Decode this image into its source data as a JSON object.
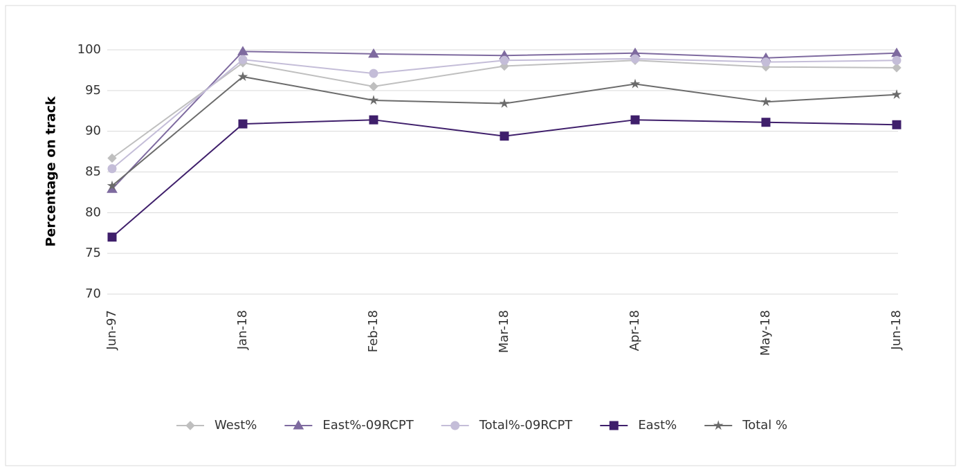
{
  "chart_data": {
    "type": "line",
    "y_label": "Percentage on track",
    "categories": [
      "Jun-97",
      "Jan-18",
      "Feb-18",
      "Mar-18",
      "Apr-18",
      "May-18",
      "Jun-18"
    ],
    "series": [
      {
        "name": "West%",
        "color": "#bfbfbf",
        "marker": "diamond",
        "values": [
          86.7,
          98.4,
          95.5,
          98.0,
          98.7,
          97.9,
          97.8
        ]
      },
      {
        "name": "East%-09RCPT",
        "color": "#7e6a9f",
        "marker": "triangle",
        "values": [
          82.9,
          99.8,
          99.5,
          99.3,
          99.6,
          99.0,
          99.6
        ]
      },
      {
        "name": "Total%-09RCPT",
        "color": "#c4bdd8",
        "marker": "circle",
        "values": [
          85.4,
          98.8,
          97.1,
          98.7,
          98.9,
          98.5,
          98.7
        ]
      },
      {
        "name": "East%",
        "color": "#3f1f6b",
        "marker": "square",
        "values": [
          77.0,
          90.9,
          91.4,
          89.4,
          91.4,
          91.1,
          90.8
        ]
      },
      {
        "name": "Total %",
        "color": "#6b6b6b",
        "marker": "star",
        "values": [
          83.3,
          96.7,
          93.8,
          93.4,
          95.8,
          93.6,
          94.5
        ]
      }
    ],
    "ylim": [
      70,
      100
    ],
    "yticks": [
      70,
      75,
      80,
      85,
      90,
      95,
      100
    ],
    "grid": true,
    "legend": "bottom"
  }
}
